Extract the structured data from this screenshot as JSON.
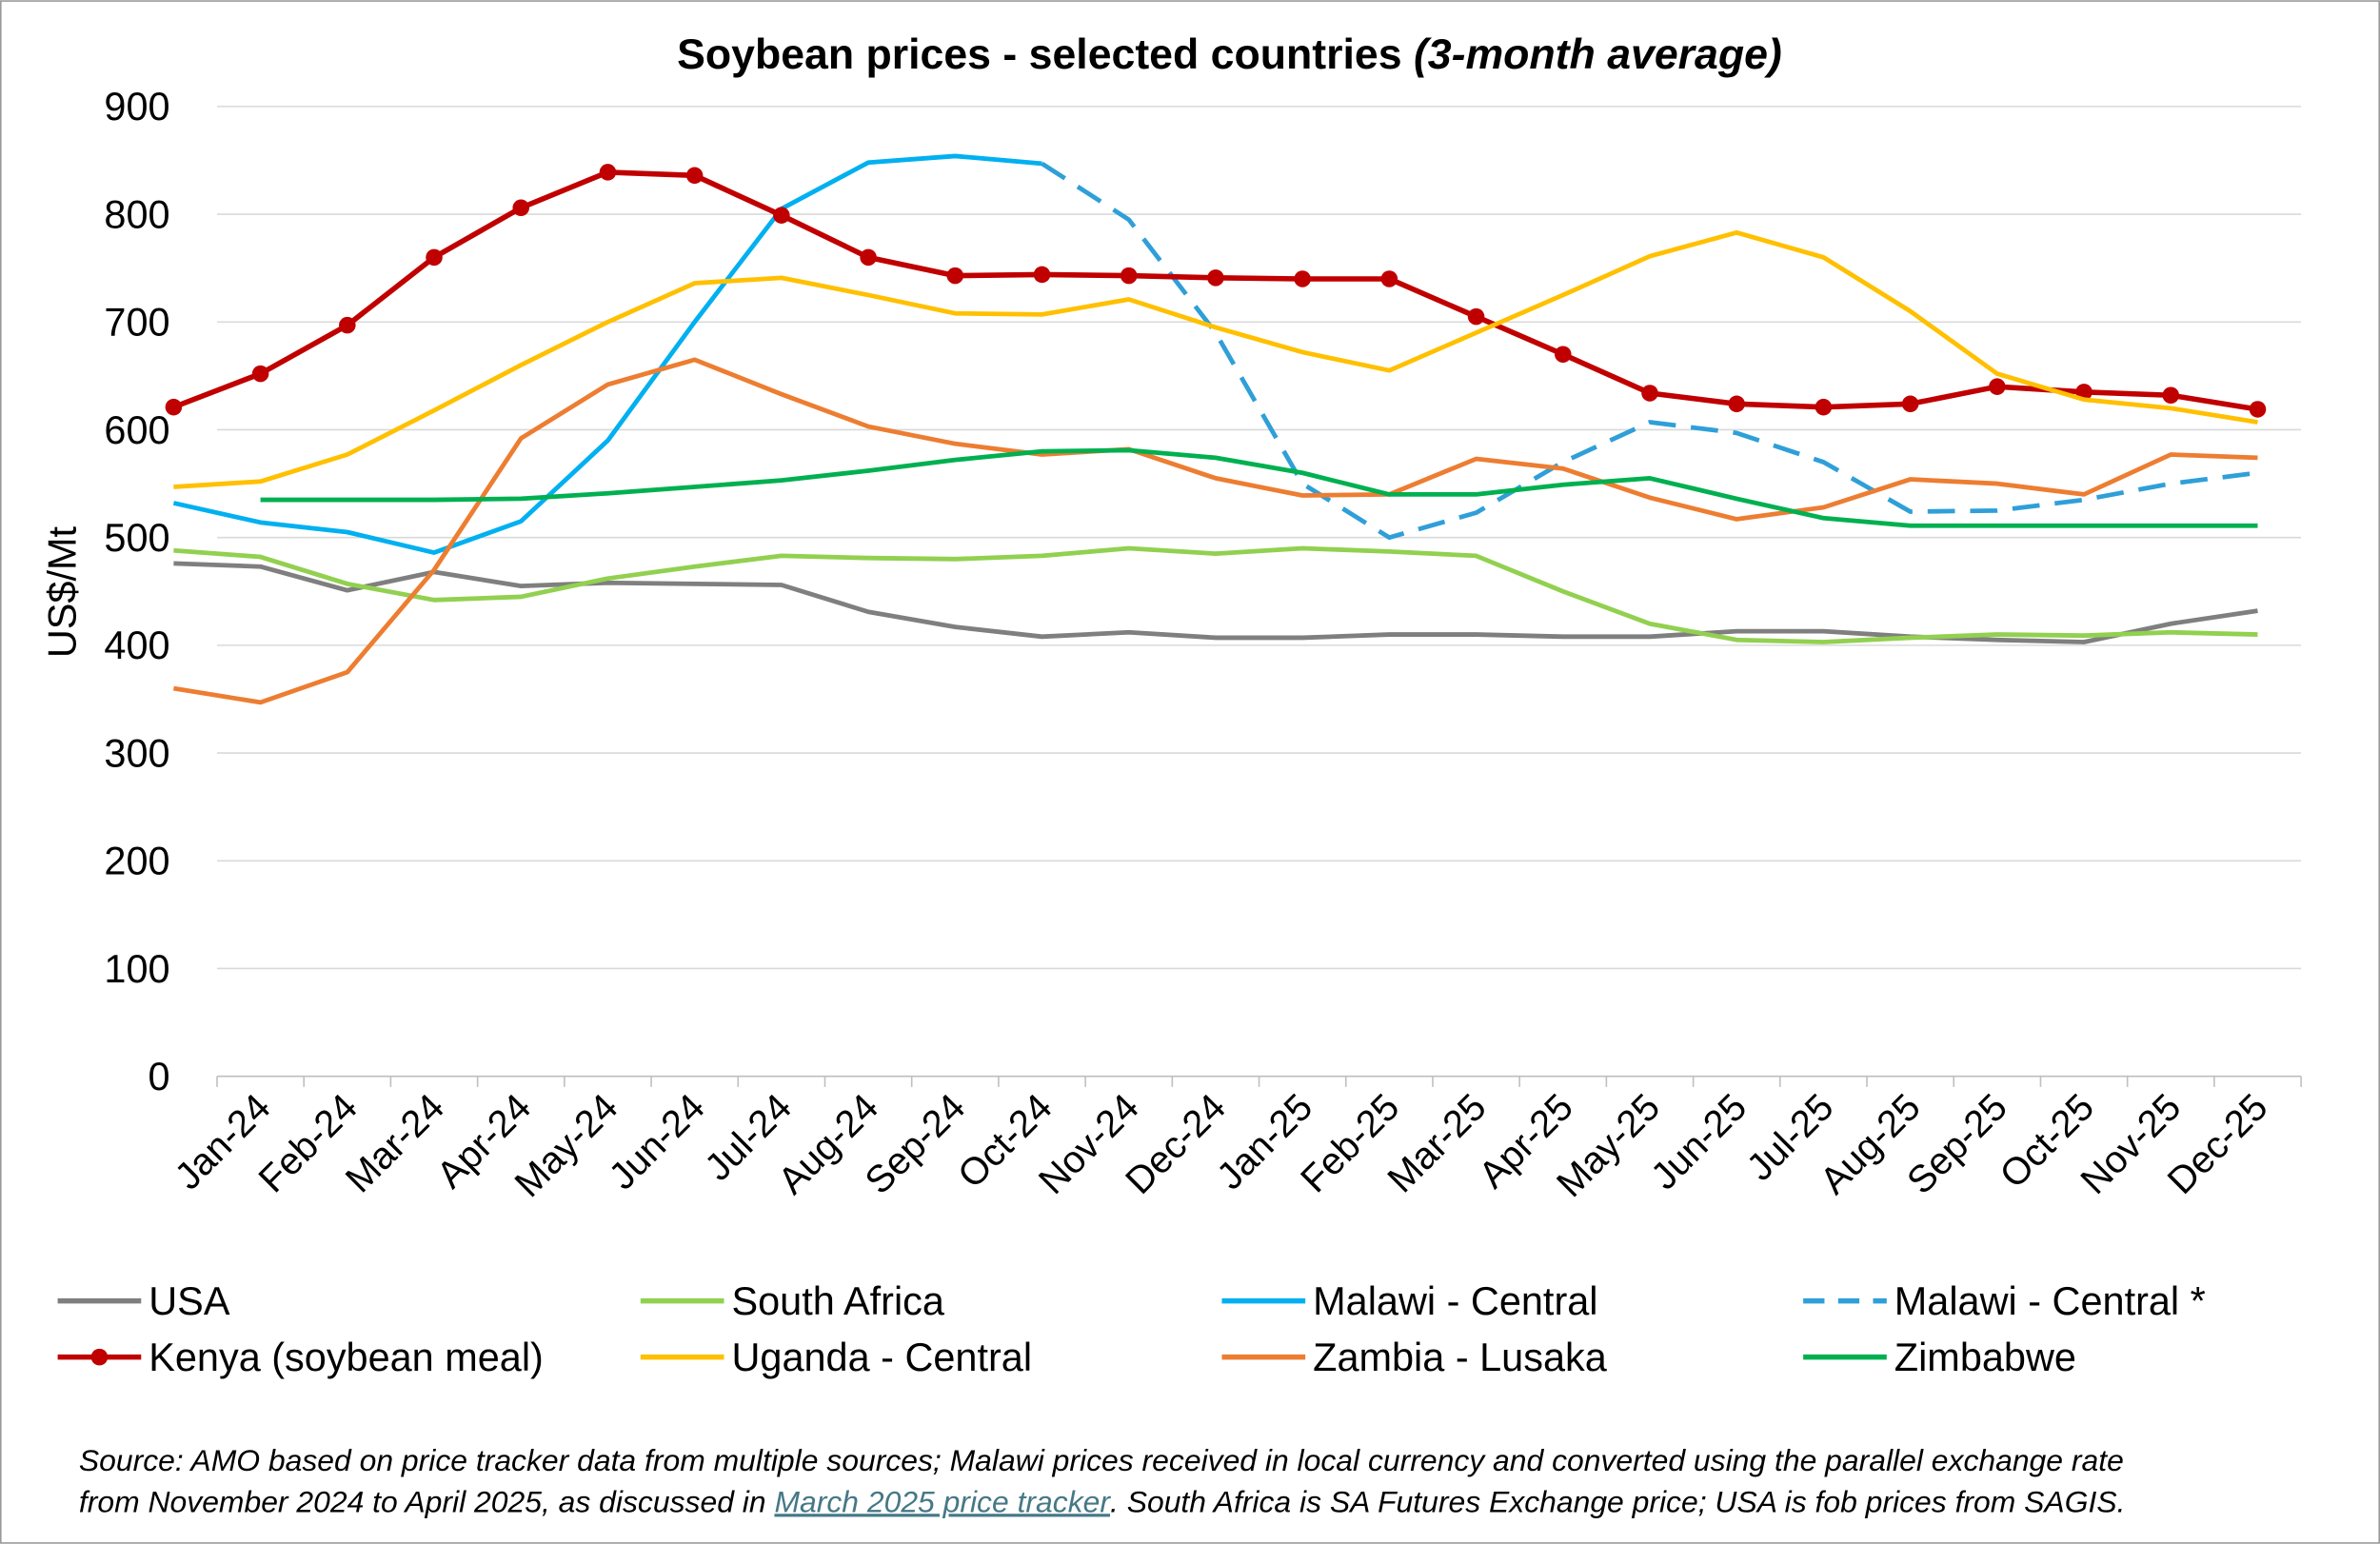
{
  "chart_data": {
    "type": "line",
    "title": "Soybean prices - selected countries",
    "title_italic": "(3-month average)",
    "y_label": "US$/Mt",
    "categories": [
      null,
      "Jan-24",
      "Feb-24",
      "Mar-24",
      "Apr-24",
      "May-24",
      "Jun-24",
      "Jul-24",
      "Aug-24",
      "Sep-24",
      "Oct-24",
      "Nov-24",
      "Dec-24",
      "Jan-25",
      "Feb-25",
      "Mar-25",
      "Apr-25",
      "May-25",
      "Jun-25",
      "Jul-25",
      "Aug-25",
      "Sep-25",
      "Oct-25",
      "Nov-25",
      "Dec-25"
    ],
    "ylim": [
      0,
      900
    ],
    "yticks": [
      0,
      100,
      200,
      300,
      400,
      500,
      600,
      700,
      800,
      900
    ],
    "grid": true,
    "legend": "bottom",
    "series": [
      {
        "name": "USA",
        "color": "#7f7f7f",
        "values": [
          476,
          473,
          451,
          468,
          455,
          458,
          457,
          456,
          431,
          417,
          408,
          412,
          407,
          407,
          410,
          410,
          408,
          408,
          413,
          413,
          408,
          405,
          403,
          420,
          432
        ]
      },
      {
        "name": "South Africa",
        "color": "#92d050",
        "values": [
          488,
          482,
          457,
          442,
          445,
          462,
          473,
          483,
          481,
          480,
          483,
          490,
          485,
          490,
          487,
          483,
          450,
          420,
          405,
          403,
          407,
          410,
          409,
          412,
          410
        ]
      },
      {
        "name": "Malawi - Central",
        "color": "#00b0f0",
        "values": [
          532,
          514,
          505,
          486,
          515,
          590,
          700,
          805,
          848,
          854,
          847,
          null,
          null,
          null,
          null,
          null,
          null,
          null,
          null,
          null,
          null,
          null,
          null,
          null,
          null
        ]
      },
      {
        "name": "Malawi - Central *",
        "color": "#2f9fd8",
        "dash": true,
        "values": [
          null,
          null,
          null,
          null,
          null,
          null,
          null,
          null,
          null,
          null,
          847,
          795,
          690,
          550,
          500,
          523,
          570,
          607,
          597,
          570,
          524,
          525,
          535,
          550,
          560
        ]
      },
      {
        "name": "Kenya (soybean meal)",
        "color": "#c00000",
        "marker": true,
        "values": [
          621,
          652,
          697,
          760,
          806,
          839,
          836,
          799,
          760,
          743,
          744,
          743,
          741,
          740,
          740,
          705,
          670,
          634,
          624,
          621,
          624,
          640,
          635,
          632,
          619
        ]
      },
      {
        "name": "Uganda - Central",
        "color": "#ffc000",
        "values": [
          547,
          552,
          577,
          618,
          660,
          700,
          736,
          741,
          725,
          708,
          707,
          721,
          695,
          672,
          655,
          690,
          725,
          761,
          783,
          760,
          710,
          652,
          628,
          620,
          607
        ]
      },
      {
        "name": "Zambia - Lusaka",
        "color": "#ed7d31",
        "values": [
          360,
          347,
          375,
          470,
          592,
          642,
          665,
          633,
          603,
          587,
          577,
          582,
          555,
          539,
          540,
          573,
          564,
          537,
          517,
          528,
          554,
          550,
          540,
          577,
          574
        ]
      },
      {
        "name": "Zimbabwe",
        "color": "#00b050",
        "values": [
          null,
          535,
          535,
          535,
          536,
          541,
          547,
          553,
          562,
          572,
          580,
          581,
          574,
          560,
          540,
          540,
          549,
          555,
          536,
          518,
          511,
          511,
          511,
          511,
          511
        ]
      }
    ],
    "source_before": "Source: AMO based on price tracker data from multiple sources; Malawi prices received in local currency and converted using the parallel exchange rate",
    "source_line2_before": "from November 2024 to April 2025, as discussed in ",
    "source_link": "March 2025 price tracker",
    "source_after": ". South Africa is SA Futures Exchange price; USA is fob prices from SAGIS."
  }
}
